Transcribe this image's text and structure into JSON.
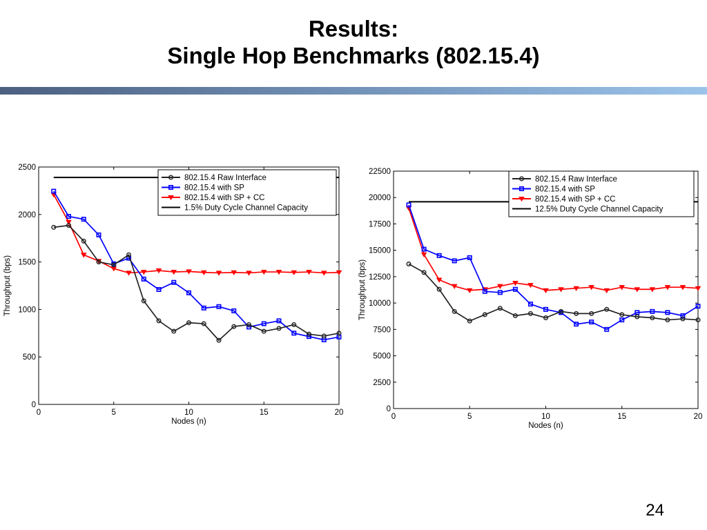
{
  "title": {
    "line1": "Results:",
    "line2": "Single Hop Benchmarks (802.15.4)"
  },
  "page_number": "24",
  "chart_data": [
    {
      "type": "line",
      "xlabel": "Nodes (n)",
      "ylabel": "Throughput (bps)",
      "xlim": [
        0,
        20
      ],
      "ylim": [
        0,
        2500
      ],
      "xticks": [
        0,
        5,
        10,
        15,
        20
      ],
      "yticks": [
        0,
        500,
        1000,
        1500,
        2000,
        2500
      ],
      "grid": false,
      "legend_position": "top-right",
      "series": [
        {
          "name": "802.15.4 Raw Interface",
          "color": "#222222",
          "marker": "circle",
          "x": [
            1,
            2,
            3,
            4,
            5,
            6,
            7,
            8,
            9,
            10,
            11,
            12,
            13,
            14,
            15,
            16,
            17,
            18,
            19,
            20
          ],
          "values": [
            1865,
            1885,
            1720,
            1500,
            1470,
            1575,
            1090,
            880,
            770,
            860,
            850,
            675,
            820,
            840,
            770,
            800,
            840,
            740,
            720,
            750
          ]
        },
        {
          "name": "802.15.4 with SP",
          "color": "#0000ff",
          "marker": "square",
          "x": [
            1,
            2,
            3,
            4,
            5,
            6,
            7,
            8,
            9,
            10,
            11,
            12,
            13,
            14,
            15,
            16,
            17,
            18,
            19,
            20
          ],
          "values": [
            2245,
            1980,
            1950,
            1785,
            1480,
            1540,
            1320,
            1210,
            1285,
            1175,
            1015,
            1030,
            985,
            815,
            850,
            880,
            750,
            715,
            680,
            710
          ]
        },
        {
          "name": "802.15.4 with SP + CC",
          "color": "#ff0000",
          "marker": "triangle-down",
          "x": [
            1,
            2,
            3,
            4,
            5,
            6,
            7,
            8,
            9,
            10,
            11,
            12,
            13,
            14,
            15,
            16,
            17,
            18,
            19,
            20
          ],
          "values": [
            2210,
            1920,
            1575,
            1510,
            1430,
            1385,
            1395,
            1410,
            1395,
            1400,
            1390,
            1385,
            1390,
            1385,
            1395,
            1395,
            1390,
            1395,
            1385,
            1390
          ]
        },
        {
          "name": "1.5% Duty Cycle Channel Capacity",
          "color": "#000000",
          "marker": "none",
          "x": [
            1,
            20
          ],
          "values": [
            2390,
            2390
          ]
        }
      ]
    },
    {
      "type": "line",
      "xlabel": "Nodes (n)",
      "ylabel": "Throughput (bps)",
      "xlim": [
        0,
        20
      ],
      "ylim": [
        0,
        22500
      ],
      "xticks": [
        0,
        5,
        10,
        15,
        20
      ],
      "yticks": [
        0,
        2500,
        5000,
        7500,
        10000,
        12500,
        15000,
        17500,
        20000,
        22500
      ],
      "grid": false,
      "legend_position": "top-right",
      "series": [
        {
          "name": "802.15.4 Raw Interface",
          "color": "#222222",
          "marker": "circle",
          "x": [
            1,
            2,
            3,
            4,
            5,
            6,
            7,
            8,
            9,
            10,
            11,
            12,
            13,
            14,
            15,
            16,
            17,
            18,
            19,
            20
          ],
          "values": [
            13700,
            12900,
            11300,
            9200,
            8300,
            8900,
            9500,
            8800,
            9000,
            8600,
            9200,
            9000,
            9000,
            9400,
            8900,
            8700,
            8600,
            8400,
            8500,
            8400
          ]
        },
        {
          "name": "802.15.4 with SP",
          "color": "#0000ff",
          "marker": "square",
          "x": [
            1,
            2,
            3,
            4,
            5,
            6,
            7,
            8,
            9,
            10,
            11,
            12,
            13,
            14,
            15,
            16,
            17,
            18,
            19,
            20
          ],
          "values": [
            19300,
            15100,
            14500,
            14000,
            14300,
            11100,
            11000,
            11300,
            9900,
            9400,
            9100,
            8000,
            8200,
            7500,
            8400,
            9100,
            9200,
            9100,
            8800,
            9700
          ]
        },
        {
          "name": "802.15.4 with SP + CC",
          "color": "#ff0000",
          "marker": "triangle-down",
          "x": [
            1,
            2,
            3,
            4,
            5,
            6,
            7,
            8,
            9,
            10,
            11,
            12,
            13,
            14,
            15,
            16,
            17,
            18,
            19,
            20
          ],
          "values": [
            19000,
            14600,
            12200,
            11600,
            11200,
            11300,
            11600,
            11900,
            11700,
            11200,
            11300,
            11400,
            11500,
            11200,
            11500,
            11300,
            11300,
            11500,
            11500,
            11400
          ]
        },
        {
          "name": "12.5% Duty Cycle Channel Capacity",
          "color": "#000000",
          "marker": "none",
          "x": [
            1,
            20
          ],
          "values": [
            19600,
            19600
          ]
        }
      ]
    }
  ]
}
